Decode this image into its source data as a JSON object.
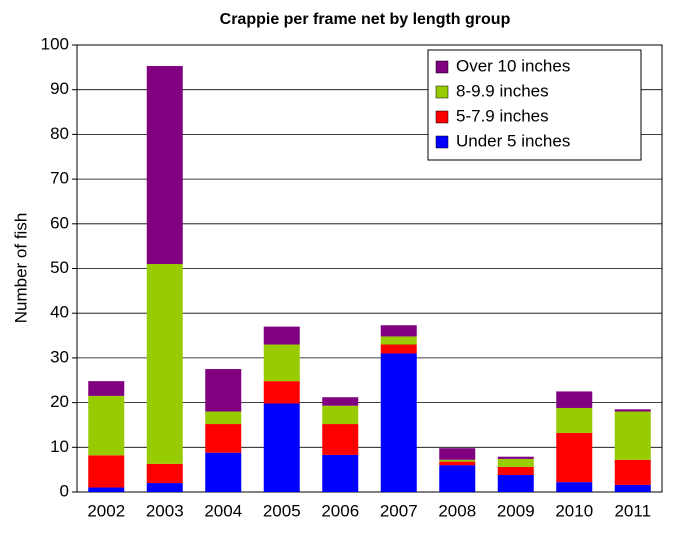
{
  "chart_data": {
    "type": "stacked_bar",
    "title": "Crappie per frame net by length group",
    "y_label": "Number of fish",
    "categories": [
      "2002",
      "2003",
      "2004",
      "2005",
      "2006",
      "2007",
      "2008",
      "2009",
      "2010",
      "2011"
    ],
    "series": [
      {
        "name": "Under 5 inches",
        "color": "#0000ff",
        "values": [
          1,
          2,
          8.8,
          19.8,
          8.3,
          31,
          6,
          3.8,
          2.2,
          1.6
        ]
      },
      {
        "name": "5-7.9 inches",
        "color": "#ff0000",
        "values": [
          7.2,
          4.3,
          6.4,
          5,
          6.9,
          2,
          0.8,
          1.8,
          11,
          5.6
        ]
      },
      {
        "name": "8-9.9 inches",
        "color": "#99cc00",
        "values": [
          13.3,
          44.7,
          2.8,
          8.2,
          4.1,
          1.8,
          0.4,
          1.8,
          5.6,
          10.8
        ]
      },
      {
        "name": "Over 10 inches",
        "color": "#800080",
        "values": [
          3.3,
          44.3,
          9.5,
          4,
          1.9,
          2.5,
          2.6,
          0.5,
          3.7,
          0.5
        ]
      }
    ],
    "ylim": [
      0,
      100
    ],
    "yticks": [
      0,
      10,
      20,
      30,
      40,
      50,
      60,
      70,
      80,
      90,
      100
    ],
    "grid": true,
    "legend": "upper right"
  }
}
